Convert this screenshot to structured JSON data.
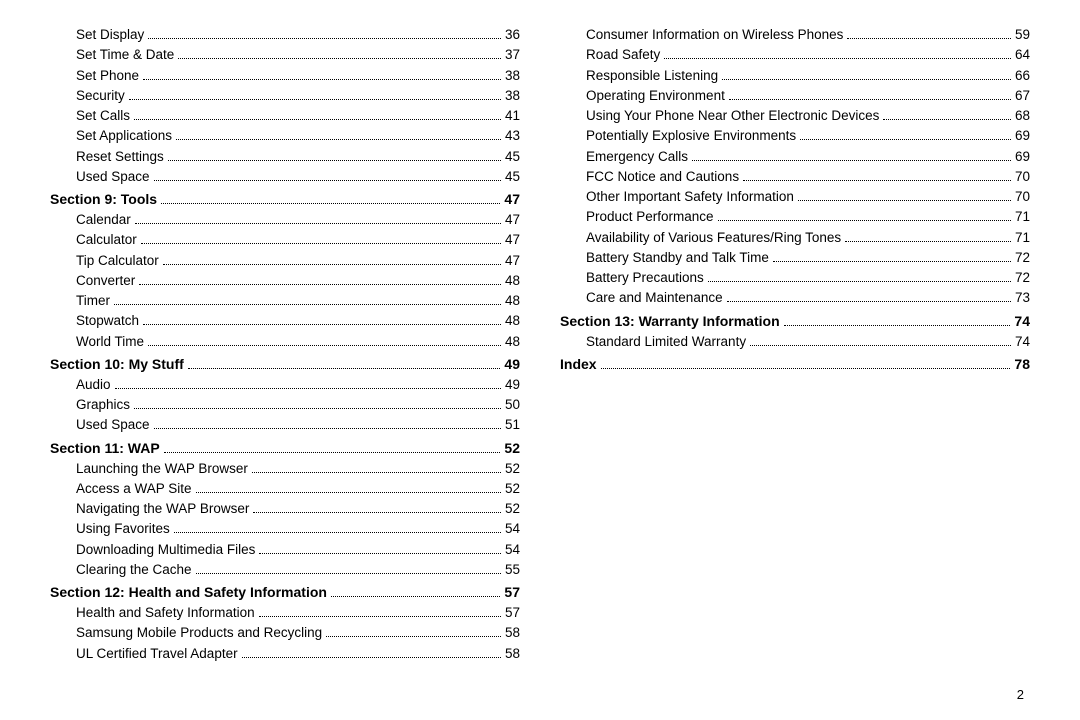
{
  "page_number": "2",
  "columns": [
    [
      {
        "type": "sub",
        "label": "Set Display",
        "page": "36"
      },
      {
        "type": "sub",
        "label": "Set Time & Date",
        "page": "37"
      },
      {
        "type": "sub",
        "label": "Set Phone",
        "page": "38"
      },
      {
        "type": "sub",
        "label": "Security",
        "page": "38"
      },
      {
        "type": "sub",
        "label": "Set Calls",
        "page": "41"
      },
      {
        "type": "sub",
        "label": "Set Applications",
        "page": "43"
      },
      {
        "type": "sub",
        "label": "Reset Settings",
        "page": "45"
      },
      {
        "type": "sub",
        "label": "Used Space",
        "page": "45"
      },
      {
        "type": "section",
        "label": "Section 9:  Tools",
        "page": "47"
      },
      {
        "type": "sub",
        "label": "Calendar",
        "page": "47"
      },
      {
        "type": "sub",
        "label": "Calculator",
        "page": "47"
      },
      {
        "type": "sub",
        "label": "Tip Calculator",
        "page": "47"
      },
      {
        "type": "sub",
        "label": "Converter",
        "page": "48"
      },
      {
        "type": "sub",
        "label": "Timer",
        "page": "48"
      },
      {
        "type": "sub",
        "label": "Stopwatch",
        "page": "48"
      },
      {
        "type": "sub",
        "label": "World Time",
        "page": "48"
      },
      {
        "type": "section",
        "label": "Section 10:  My Stuff",
        "page": "49"
      },
      {
        "type": "sub",
        "label": "Audio",
        "page": "49"
      },
      {
        "type": "sub",
        "label": "Graphics",
        "page": "50"
      },
      {
        "type": "sub",
        "label": "Used Space",
        "page": "51"
      },
      {
        "type": "section",
        "label": "Section 11:  WAP",
        "page": "52"
      },
      {
        "type": "sub",
        "label": "Launching the WAP Browser",
        "page": "52"
      },
      {
        "type": "sub",
        "label": "Access a WAP Site",
        "page": "52"
      },
      {
        "type": "sub",
        "label": "Navigating the WAP Browser",
        "page": "52"
      },
      {
        "type": "sub",
        "label": "Using Favorites",
        "page": "54"
      },
      {
        "type": "sub",
        "label": "Downloading Multimedia Files",
        "page": "54"
      },
      {
        "type": "sub",
        "label": "Clearing the Cache",
        "page": "55"
      },
      {
        "type": "section",
        "label": "Section 12:  Health and Safety Information",
        "page": "57"
      },
      {
        "type": "sub",
        "label": "Health and Safety Information",
        "page": "57"
      },
      {
        "type": "sub",
        "label": "Samsung Mobile Products and Recycling",
        "page": "58"
      },
      {
        "type": "sub",
        "label": "UL Certified Travel Adapter",
        "page": "58"
      },
      {
        "type": "sub",
        "label": "Consumer Information on Wireless Phones",
        "page": "59"
      },
      {
        "type": "sub",
        "label": "Road Safety",
        "page": "64"
      },
      {
        "type": "sub",
        "label": "Responsible Listening",
        "page": "66"
      },
      {
        "type": "sub",
        "label": "Operating Environment",
        "page": "67"
      },
      {
        "type": "sub",
        "label": "Using Your Phone Near Other Electronic Devices",
        "page": "68"
      },
      {
        "type": "sub",
        "label": "Potentially Explosive Environments",
        "page": "69"
      },
      {
        "type": "sub",
        "label": "Emergency Calls",
        "page": "69"
      },
      {
        "type": "sub",
        "label": "FCC Notice and Cautions",
        "page": "70"
      },
      {
        "type": "sub",
        "label": "Other Important Safety Information",
        "page": "70"
      },
      {
        "type": "sub",
        "label": "Product Performance",
        "page": "71"
      },
      {
        "type": "sub",
        "label": "Availability of Various Features/Ring Tones",
        "page": "71"
      },
      {
        "type": "sub",
        "label": "Battery Standby and Talk Time",
        "page": "72"
      },
      {
        "type": "sub",
        "label": "Battery Precautions",
        "page": "72"
      },
      {
        "type": "sub",
        "label": "Care and Maintenance",
        "page": "73"
      },
      {
        "type": "section",
        "label": "Section 13:  Warranty Information",
        "page": "74"
      },
      {
        "type": "sub",
        "label": "Standard Limited Warranty",
        "page": "74"
      },
      {
        "type": "section",
        "label": "Index",
        "page": "78"
      }
    ]
  ]
}
